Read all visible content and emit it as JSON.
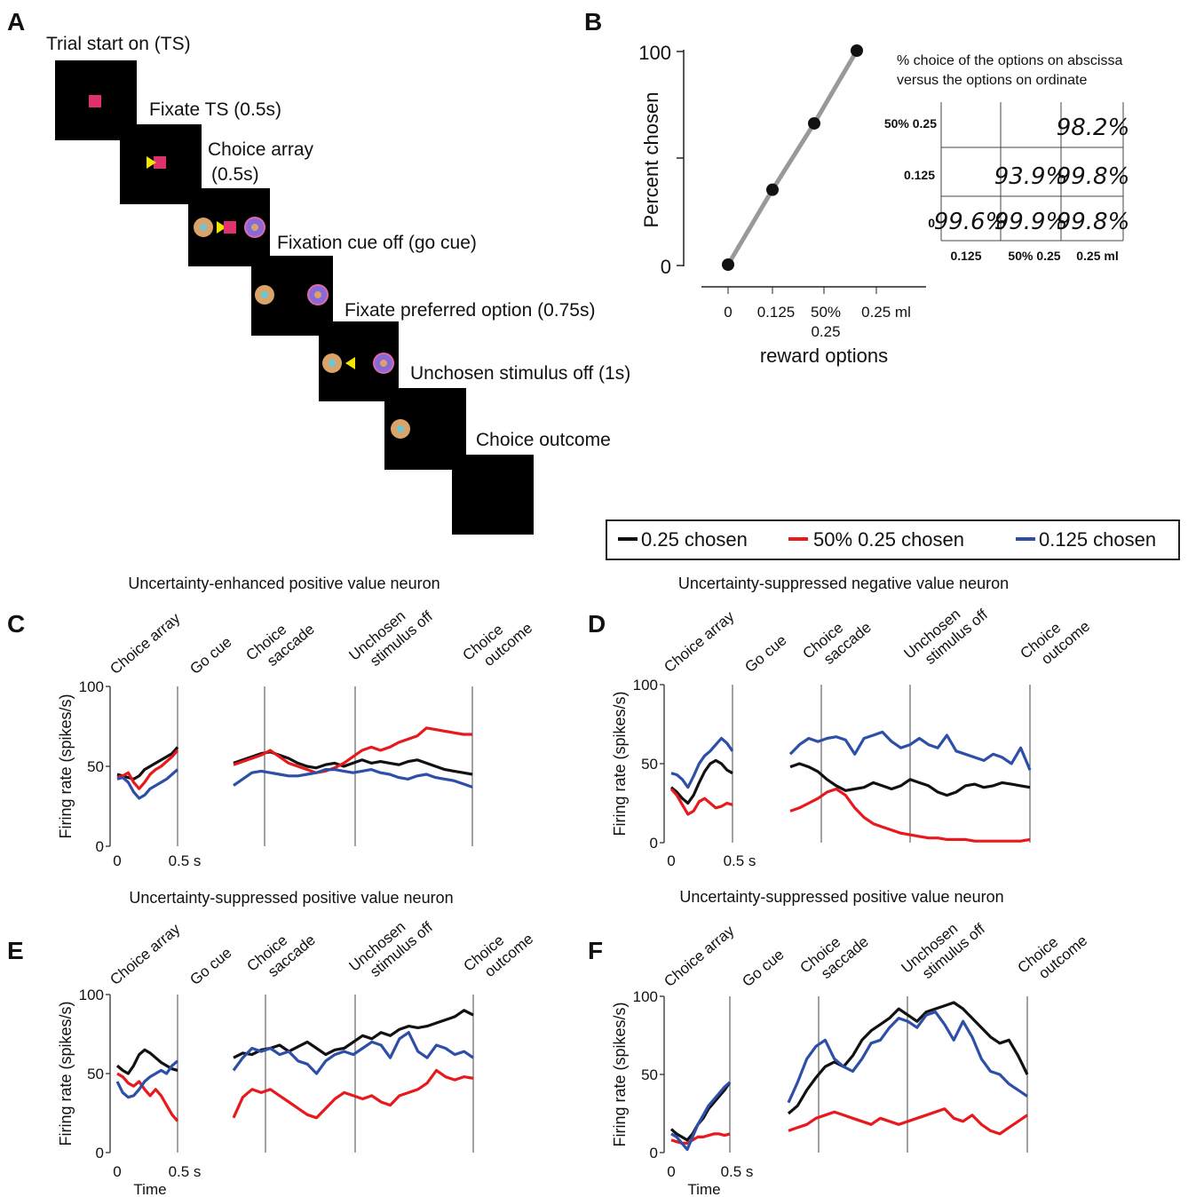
{
  "panel_letters": [
    "A",
    "B",
    "C",
    "D",
    "E",
    "F"
  ],
  "panel_a": {
    "steps": [
      {
        "label": "Trial start on (TS)"
      },
      {
        "label": "Fixate TS (0.5s)"
      },
      {
        "label": "Choice array",
        "label2": "(0.5s)"
      },
      {
        "label": "Fixation cue off (go cue)"
      },
      {
        "label": "Fixate preferred option (0.75s)"
      },
      {
        "label": "Unchosen stimulus off (1s)"
      },
      {
        "label": "Choice outcome"
      }
    ],
    "colors": {
      "screen": "#000000",
      "ts": "#e0306e",
      "arrow": "#f2e600",
      "stim_orange": "#d9a36a",
      "stim_cyan": "#6ac8d8",
      "stim_pink": "#e06aa8",
      "stim_purple": "#8a6ad8"
    }
  },
  "panel_b_table": {
    "caption_line1": "% choice of  the options on abscissa",
    "caption_line2": "versus the options on ordinate",
    "row_labels": [
      "50% 0.25",
      "0.125",
      "0"
    ],
    "col_labels": [
      "0.125",
      "50% 0.25",
      "0.25 ml"
    ],
    "cells": [
      [
        "",
        "",
        "98.2%"
      ],
      [
        "",
        "93.9%",
        "99.8%"
      ],
      [
        "99.6%",
        "99.9%",
        "99.8%"
      ]
    ]
  },
  "legend": {
    "items": [
      {
        "label": "0.25 chosen",
        "color": "#111111"
      },
      {
        "label": "50% 0.25 chosen",
        "color": "#e8191d"
      },
      {
        "label": "0.125 chosen",
        "color": "#2e4fa8"
      }
    ]
  },
  "chart_data": [
    {
      "panel": "B",
      "type": "line",
      "categories": [
        "0",
        "0.125",
        "50%\n0.25",
        "0.25 ml"
      ],
      "x_tick_labels": [
        "0",
        "0.125",
        "50%",
        "0.25 ml"
      ],
      "x_tick_sublabel": "0.25",
      "values": [
        0,
        35,
        66,
        100
      ],
      "xlabel": "reward options",
      "ylabel": "Percent chosen",
      "ylim": [
        0,
        100
      ],
      "yticks": [
        "0",
        "100"
      ],
      "grid": false
    },
    {
      "panel": "C",
      "type": "line",
      "title": "Uncertainty-enhanced positive value neuron",
      "ylabel": "Firing rate (spikes/s)",
      "ylim": [
        0,
        100
      ],
      "yticks": [
        "0",
        "50",
        "100"
      ],
      "xticks": [
        "0",
        "0.5 s"
      ],
      "xlabel": "",
      "events": [
        "Choice array",
        "Go cue",
        "Choice\nsaccade",
        "Unchosen\nstimulus off",
        "Choice\noutcome"
      ],
      "series": [
        {
          "name": "0.25 chosen",
          "seg1": [
            45,
            44,
            43,
            42,
            44,
            48,
            50,
            52,
            54,
            56,
            58,
            62
          ],
          "seg2": [
            52,
            54,
            56,
            58,
            59,
            57,
            55,
            52,
            50,
            49,
            51,
            52,
            50,
            52,
            54,
            52,
            53,
            52,
            51,
            53,
            54,
            52,
            50,
            48,
            47,
            46,
            45
          ]
        },
        {
          "name": "50% 0.25 chosen",
          "seg1": [
            43,
            44,
            46,
            40,
            36,
            40,
            45,
            48,
            50,
            53,
            56,
            60
          ],
          "seg2": [
            51,
            53,
            55,
            57,
            60,
            56,
            52,
            50,
            48,
            46,
            47,
            49,
            52,
            56,
            60,
            62,
            60,
            62,
            65,
            67,
            69,
            74,
            73,
            72,
            71,
            70,
            70
          ]
        },
        {
          "name": "0.125 chosen",
          "seg1": [
            42,
            43,
            40,
            34,
            30,
            32,
            36,
            38,
            40,
            42,
            45,
            48
          ],
          "seg2": [
            38,
            42,
            46,
            47,
            46,
            45,
            44,
            44,
            45,
            46,
            48,
            48,
            47,
            46,
            47,
            48,
            46,
            45,
            43,
            42,
            44,
            45,
            43,
            42,
            41,
            39,
            37
          ]
        }
      ]
    },
    {
      "panel": "D",
      "type": "line",
      "title": "Uncertainty-suppressed negative value neuron",
      "ylabel": "Firing rate (spikes/s)",
      "ylim": [
        0,
        100
      ],
      "yticks": [
        "0",
        "50",
        "100"
      ],
      "xticks": [
        "0",
        "0.5 s"
      ],
      "xlabel": "",
      "events": [
        "Choice array",
        "Go cue",
        "Choice\nsaccade",
        "Unchosen\nstimulus off",
        "Choice\noutcome"
      ],
      "series": [
        {
          "name": "0.25 chosen",
          "seg1": [
            35,
            32,
            28,
            25,
            30,
            38,
            45,
            50,
            52,
            50,
            46,
            44
          ],
          "seg2": [
            48,
            50,
            48,
            45,
            40,
            36,
            33,
            34,
            35,
            38,
            36,
            34,
            36,
            40,
            38,
            36,
            32,
            30,
            32,
            36,
            37,
            35,
            36,
            38,
            37,
            36,
            35
          ]
        },
        {
          "name": "50% 0.25 chosen",
          "seg1": [
            34,
            30,
            24,
            18,
            20,
            26,
            28,
            25,
            22,
            23,
            25,
            24
          ],
          "seg2": [
            20,
            22,
            25,
            28,
            32,
            34,
            30,
            22,
            16,
            12,
            10,
            8,
            6,
            5,
            4,
            3,
            3,
            2,
            2,
            2,
            1,
            1,
            1,
            1,
            1,
            1,
            2
          ]
        },
        {
          "name": "0.125 chosen",
          "seg1": [
            44,
            43,
            40,
            35,
            42,
            50,
            55,
            58,
            62,
            66,
            63,
            58
          ],
          "seg2": [
            56,
            62,
            66,
            64,
            66,
            67,
            65,
            56,
            66,
            68,
            70,
            64,
            60,
            62,
            66,
            62,
            60,
            68,
            58,
            56,
            54,
            52,
            56,
            54,
            50,
            60,
            46
          ]
        }
      ]
    },
    {
      "panel": "E",
      "type": "line",
      "title": "Uncertainty-suppressed positive value neuron",
      "ylabel": "Firing rate (spikes/s)",
      "ylim": [
        0,
        100
      ],
      "yticks": [
        "0",
        "50",
        "100"
      ],
      "xticks": [
        "0",
        "0.5 s"
      ],
      "xlabel": "Time",
      "events": [
        "Choice array",
        "Go cue",
        "Choice\nsaccade",
        "Unchosen\nstimulus off",
        "Choice\noutcome"
      ],
      "series": [
        {
          "name": "0.25 chosen",
          "seg1": [
            55,
            52,
            50,
            55,
            62,
            65,
            63,
            60,
            57,
            55,
            53,
            52
          ],
          "seg2": [
            60,
            63,
            62,
            65,
            66,
            68,
            64,
            67,
            70,
            66,
            62,
            65,
            66,
            70,
            74,
            72,
            76,
            74,
            78,
            80,
            79,
            80,
            82,
            84,
            86,
            90,
            87
          ]
        },
        {
          "name": "50% 0.25 chosen",
          "seg1": [
            50,
            48,
            44,
            42,
            45,
            40,
            36,
            40,
            36,
            30,
            24,
            20
          ],
          "seg2": [
            22,
            35,
            40,
            38,
            40,
            36,
            32,
            28,
            24,
            22,
            28,
            34,
            38,
            36,
            34,
            36,
            32,
            30,
            36,
            38,
            40,
            44,
            52,
            48,
            46,
            48,
            47
          ]
        },
        {
          "name": "0.125 chosen",
          "seg1": [
            45,
            38,
            35,
            36,
            40,
            45,
            48,
            50,
            52,
            50,
            55,
            58
          ],
          "seg2": [
            52,
            60,
            66,
            64,
            66,
            62,
            64,
            58,
            56,
            50,
            58,
            62,
            64,
            62,
            66,
            70,
            68,
            60,
            72,
            76,
            64,
            60,
            68,
            66,
            62,
            64,
            60
          ]
        }
      ]
    },
    {
      "panel": "F",
      "type": "line",
      "title": "Uncertainty-suppressed positive value neuron",
      "ylabel": "Firing rate (spikes/s)",
      "ylim": [
        0,
        100
      ],
      "yticks": [
        "0",
        "50",
        "100"
      ],
      "xticks": [
        "0",
        "0.5 s"
      ],
      "xlabel": "Time",
      "events": [
        "Choice array",
        "Go cue",
        "Choice\nsaccade",
        "Unchosen\nstimulus off",
        "Choice\noutcome"
      ],
      "series": [
        {
          "name": "0.25 chosen",
          "seg1": [
            15,
            12,
            10,
            8,
            12,
            18,
            22,
            28,
            32,
            36,
            40,
            45
          ],
          "seg2": [
            25,
            30,
            40,
            48,
            55,
            58,
            55,
            62,
            72,
            78,
            82,
            86,
            92,
            88,
            84,
            90,
            92,
            94,
            96,
            92,
            86,
            80,
            74,
            70,
            72,
            62,
            50
          ]
        },
        {
          "name": "50% 0.25 chosen",
          "seg1": [
            8,
            7,
            6,
            6,
            8,
            10,
            10,
            11,
            12,
            12,
            11,
            12
          ],
          "seg2": [
            14,
            16,
            18,
            22,
            24,
            26,
            24,
            22,
            20,
            18,
            22,
            20,
            18,
            20,
            22,
            24,
            26,
            28,
            22,
            20,
            24,
            18,
            14,
            12,
            16,
            20,
            24
          ]
        },
        {
          "name": "0.125 chosen",
          "seg1": [
            12,
            10,
            6,
            2,
            10,
            18,
            24,
            30,
            34,
            38,
            42,
            45
          ],
          "seg2": [
            32,
            45,
            60,
            68,
            72,
            60,
            55,
            52,
            60,
            70,
            72,
            80,
            86,
            84,
            80,
            88,
            90,
            82,
            72,
            84,
            74,
            60,
            52,
            50,
            44,
            40,
            36
          ]
        }
      ]
    }
  ]
}
